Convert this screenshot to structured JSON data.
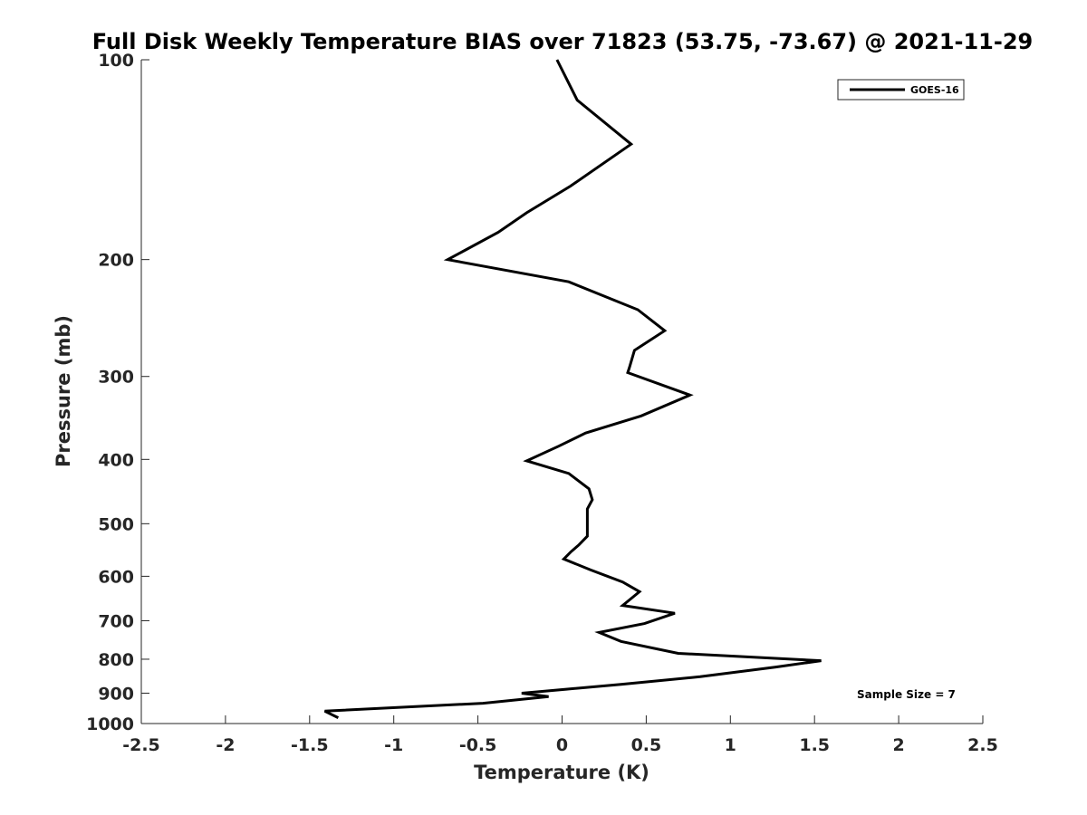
{
  "chart_data": {
    "type": "line",
    "title": "Full Disk Weekly Temperature BIAS over 71823 (53.75, -73.67) @ 2021-11-29",
    "xlabel": "Temperature (K)",
    "ylabel": "Pressure (mb)",
    "xlim": [
      -2.5,
      2.5
    ],
    "ylim": [
      100,
      1000
    ],
    "yscale": "log",
    "yreversed": true,
    "grid": false,
    "legend_position": "top-right",
    "x_ticks": [
      "-2.5",
      "-2",
      "-1.5",
      "-1",
      "-0.5",
      "0",
      "0.5",
      "1",
      "1.5",
      "2",
      "2.5"
    ],
    "y_ticks": [
      "100",
      "200",
      "300",
      "400",
      "500",
      "600",
      "700",
      "800",
      "900",
      "1000"
    ],
    "annotation": "Sample Size = 7",
    "series": [
      {
        "name": "GOES-16",
        "color": "#000000",
        "x": [
          -0.03,
          0.09,
          0.41,
          0.05,
          -0.21,
          -0.38,
          -0.68,
          0.04,
          0.45,
          0.61,
          0.43,
          0.4,
          0.39,
          0.76,
          0.47,
          0.14,
          -0.02,
          -0.21,
          0.04,
          0.16,
          0.18,
          0.15,
          0.15,
          0.15,
          0.15,
          0.1,
          0.05,
          0.01,
          0.17,
          0.36,
          0.46,
          0.36,
          0.67,
          0.49,
          0.22,
          0.35,
          0.69,
          1.54,
          1.27,
          0.82,
          0.35,
          -0.24,
          -0.08,
          -0.47,
          -1.41,
          -1.33
        ],
        "y": [
          100,
          115,
          134,
          155,
          170,
          182,
          200,
          216,
          238,
          256,
          274,
          291,
          296,
          320,
          344,
          365,
          382,
          402,
          420,
          443,
          460,
          475,
          489,
          506,
          522,
          538,
          552,
          565,
          587,
          612,
          633,
          664,
          682,
          707,
          729,
          752,
          784,
          804,
          822,
          850,
          873,
          900,
          911,
          932,
          958,
          980
        ]
      }
    ]
  }
}
